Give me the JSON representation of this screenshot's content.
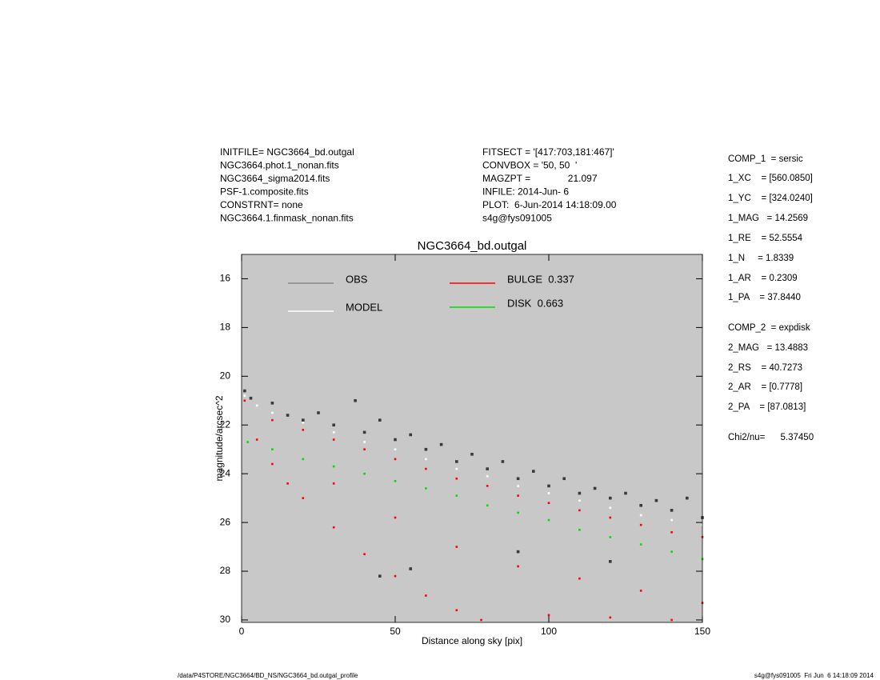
{
  "chart_data": {
    "type": "scatter",
    "title": "NGC3664_bd.outgal",
    "xlabel": "Distance along sky [pix]",
    "ylabel": "magnitude/arcsec^2",
    "xlim": [
      0,
      150
    ],
    "xticks": [
      0,
      50,
      100,
      150
    ],
    "ylim": [
      30.1,
      15
    ],
    "yticks": [
      16,
      18,
      20,
      22,
      24,
      26,
      28,
      30
    ],
    "background": "#c8c8c8",
    "series": [
      {
        "name": "BULGE  0.337",
        "color": "#ff0000",
        "x": [
          1,
          5,
          10,
          15,
          20,
          30,
          40,
          50,
          60,
          70,
          78,
          10,
          20,
          30,
          40,
          50,
          60,
          70,
          80,
          90,
          100,
          110,
          120,
          130,
          140,
          150,
          30,
          50,
          70,
          90,
          110,
          130,
          150,
          100,
          120,
          140
        ],
        "values": [
          21.0,
          22.6,
          23.6,
          24.4,
          25.0,
          26.2,
          27.3,
          28.2,
          29.0,
          29.6,
          30.0,
          21.8,
          22.2,
          22.6,
          23.0,
          23.4,
          23.8,
          24.2,
          24.5,
          24.9,
          25.2,
          25.5,
          25.8,
          26.1,
          26.4,
          26.6,
          24.4,
          25.8,
          27.0,
          27.8,
          28.3,
          28.8,
          29.3,
          29.8,
          29.9,
          30.0
        ]
      },
      {
        "name": "DISK  0.663",
        "color": "#00dd00",
        "x": [
          2,
          10,
          20,
          30,
          40,
          50,
          60,
          70,
          80,
          90,
          100,
          110,
          120,
          130,
          140,
          150
        ],
        "values": [
          22.7,
          23.0,
          23.4,
          23.7,
          24.0,
          24.3,
          24.6,
          24.9,
          25.3,
          25.6,
          25.9,
          26.3,
          26.6,
          26.9,
          27.2,
          27.5
        ]
      },
      {
        "name": "MODEL",
        "color": "#ffffff",
        "x": [
          1,
          5,
          10,
          20,
          30,
          40,
          50,
          60,
          70,
          80,
          90,
          100,
          110,
          120,
          130,
          140,
          150
        ],
        "values": [
          20.8,
          21.2,
          21.5,
          21.9,
          22.3,
          22.7,
          23.0,
          23.4,
          23.8,
          24.1,
          24.5,
          24.8,
          25.1,
          25.4,
          25.7,
          25.9,
          26.1
        ]
      },
      {
        "name": "OBS",
        "color": "#3a3a3a",
        "x": [
          1,
          3,
          10,
          15,
          20,
          25,
          30,
          37,
          40,
          45,
          50,
          55,
          60,
          65,
          70,
          75,
          80,
          85,
          90,
          95,
          100,
          105,
          110,
          115,
          120,
          125,
          130,
          135,
          140,
          145,
          150,
          45,
          55,
          90,
          120
        ],
        "values": [
          20.6,
          20.9,
          21.1,
          21.6,
          21.8,
          21.5,
          22.0,
          21.0,
          22.3,
          21.8,
          22.6,
          22.4,
          23.0,
          22.8,
          23.5,
          23.2,
          23.8,
          23.5,
          24.2,
          23.9,
          24.5,
          24.2,
          24.8,
          24.6,
          25.0,
          24.8,
          25.3,
          25.1,
          25.5,
          25.0,
          25.8,
          28.2,
          27.9,
          27.2,
          27.6
        ]
      }
    ],
    "legend_lines": [
      {
        "name": "OBS",
        "color": "#888888"
      }
    ]
  },
  "header_left": [
    "INITFILE= NGC3664_bd.outgal",
    "NGC3664.phot.1_nonan.fits",
    "NGC3664_sigma2014.fits",
    "PSF-1.composite.fits",
    "CONSTRNT= none",
    "NGC3664.1.finmask_nonan.fits"
  ],
  "header_middle": [
    "FITSECT = '[417:703,181:467]'",
    "CONVBOX = '50, 50  '",
    "MAGZPT =              21.097",
    "INFILE: 2014-Jun- 6",
    "PLOT:  6-Jun-2014 14:18:09.00",
    "s4g@fys091005"
  ],
  "params": [
    "COMP_1  = sersic",
    "1_XC    = [560.0850]",
    "1_YC    = [324.0240]",
    "1_MAG   = 14.2569",
    "1_RE    = 52.5554",
    "1_N     = 1.8339",
    "1_AR    = 0.2309",
    "1_PA    = 37.8440",
    "COMP_2  = expdisk",
    "2_MAG   = 13.4883",
    "2_RS    = 40.7273",
    "2_AR    = [0.7778]",
    "2_PA    = [87.0813]",
    "Chi2/nu=      5.37450"
  ],
  "footer_left": "/data/P4STORE/NGC3664/BD_NS/NGC3664_bd.outgal_profile",
  "footer_right": "s4g@fys091005  Fri Jun  6 14:18:09 2014"
}
